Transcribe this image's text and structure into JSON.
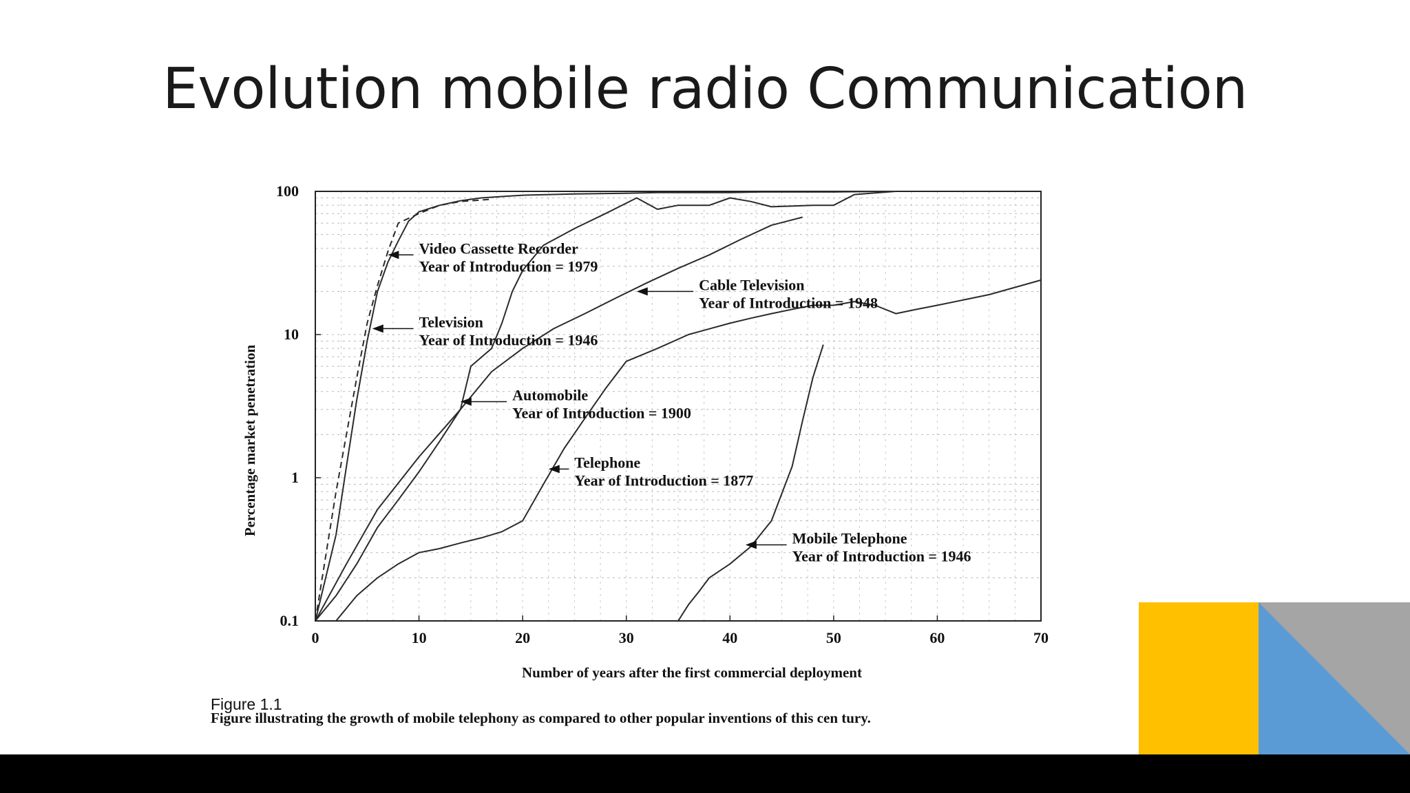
{
  "slide": {
    "title": "Evolution mobile radio Communication"
  },
  "figure": {
    "caption_label": "Figure 1.1",
    "caption_text": "Figure illustrating the growth of mobile telephony as compared to other popular inventions of this cen tury."
  },
  "chart_data": {
    "type": "line",
    "xlabel": "Number of years after the first commercial deployment",
    "ylabel": "Percentage market penetration",
    "xlim": [
      0,
      70
    ],
    "ylim": [
      0.1,
      100
    ],
    "yscale": "log",
    "grid": true,
    "x_ticks": [
      0,
      10,
      20,
      30,
      40,
      50,
      60,
      70
    ],
    "y_ticks": [
      {
        "value": 0.1,
        "label": "0.1"
      },
      {
        "value": 1,
        "label": "1"
      },
      {
        "value": 10,
        "label": "10"
      },
      {
        "value": 100,
        "label": "100"
      }
    ],
    "series": [
      {
        "name": "Video Cassette Recorder",
        "annotation": [
          "Video Cassette Recorder",
          "Year of Introduction = 1979"
        ],
        "dashed": true,
        "arrow_at": [
          7,
          36
        ],
        "label_at": [
          10,
          36
        ],
        "x": [
          0,
          2,
          4,
          5,
          6,
          7,
          8,
          10,
          12,
          14,
          17
        ],
        "y": [
          0.1,
          0.8,
          5,
          12,
          22,
          38,
          60,
          70,
          80,
          85,
          88
        ]
      },
      {
        "name": "Television",
        "annotation": [
          "Television",
          "Year of Introduction = 1946"
        ],
        "dashed": false,
        "arrow_at": [
          5.5,
          11
        ],
        "label_at": [
          10,
          11
        ],
        "x": [
          0,
          2,
          3,
          4,
          5,
          6,
          7,
          8,
          9,
          10,
          12,
          14,
          16,
          18,
          20,
          25,
          30,
          33,
          35,
          40,
          43,
          45,
          48,
          50,
          55,
          56
        ],
        "y": [
          0.1,
          0.4,
          1.2,
          3.5,
          9,
          20,
          32,
          45,
          62,
          72,
          80,
          86,
          90,
          92,
          94,
          96,
          97,
          98,
          98,
          98,
          99,
          99,
          99,
          99,
          100,
          100
        ]
      },
      {
        "name": "Cable Television",
        "annotation": [
          "Cable Television",
          "Year of Introduction = 1948"
        ],
        "dashed": false,
        "arrow_at": [
          31,
          20
        ],
        "label_at": [
          37,
          20
        ],
        "x": [
          0,
          3,
          6,
          10,
          14,
          17,
          20,
          23,
          26,
          29,
          32,
          35,
          38,
          41,
          44,
          47
        ],
        "y": [
          0.1,
          0.25,
          0.6,
          1.4,
          3,
          5.5,
          8,
          11,
          14,
          18,
          23,
          29,
          36,
          46,
          58,
          66
        ]
      },
      {
        "name": "Automobile",
        "annotation": [
          "Automobile",
          "Year of Introduction = 1900"
        ],
        "dashed": false,
        "arrow_at": [
          14,
          3.4
        ],
        "label_at": [
          19,
          3.4
        ],
        "x": [
          0,
          2,
          4,
          6,
          8,
          10,
          12,
          14,
          15,
          17,
          18,
          19,
          20,
          22,
          25,
          28,
          31,
          33,
          35,
          38,
          40,
          42,
          44,
          48,
          50,
          52,
          56
        ],
        "y": [
          0.1,
          0.15,
          0.25,
          0.45,
          0.7,
          1.1,
          1.8,
          3,
          6,
          8,
          12,
          20,
          28,
          42,
          55,
          70,
          90,
          75,
          80,
          80,
          90,
          85,
          78,
          80,
          80,
          95,
          100
        ]
      },
      {
        "name": "Telephone",
        "annotation": [
          "Telephone",
          "Year of Introduction = 1877"
        ],
        "dashed": false,
        "arrow_at": [
          22.5,
          1.15
        ],
        "label_at": [
          25,
          1.15
        ],
        "x": [
          2,
          4,
          6,
          8,
          10,
          12,
          14,
          16,
          18,
          20,
          22,
          24,
          26,
          28,
          30,
          33,
          36,
          40,
          42,
          44,
          46,
          48,
          50,
          52,
          54,
          56,
          58,
          60,
          65,
          70
        ],
        "y": [
          0.1,
          0.15,
          0.2,
          0.25,
          0.3,
          0.32,
          0.35,
          0.38,
          0.42,
          0.5,
          0.9,
          1.6,
          2.6,
          4.2,
          6.5,
          8,
          10,
          12,
          13,
          14,
          15,
          16,
          16,
          17,
          16,
          14,
          15,
          16,
          19,
          24
        ]
      },
      {
        "name": "Mobile Telephone",
        "annotation": [
          "Mobile Telephone",
          "Year of Introduction = 1946"
        ],
        "dashed": false,
        "arrow_at": [
          41.5,
          0.34
        ],
        "label_at": [
          46,
          0.34
        ],
        "x": [
          35,
          36,
          37,
          38,
          40,
          42,
          44,
          46,
          47,
          48,
          49
        ],
        "y": [
          0.1,
          0.13,
          0.16,
          0.2,
          0.25,
          0.33,
          0.5,
          1.2,
          2.5,
          5,
          8.5
        ]
      }
    ]
  }
}
